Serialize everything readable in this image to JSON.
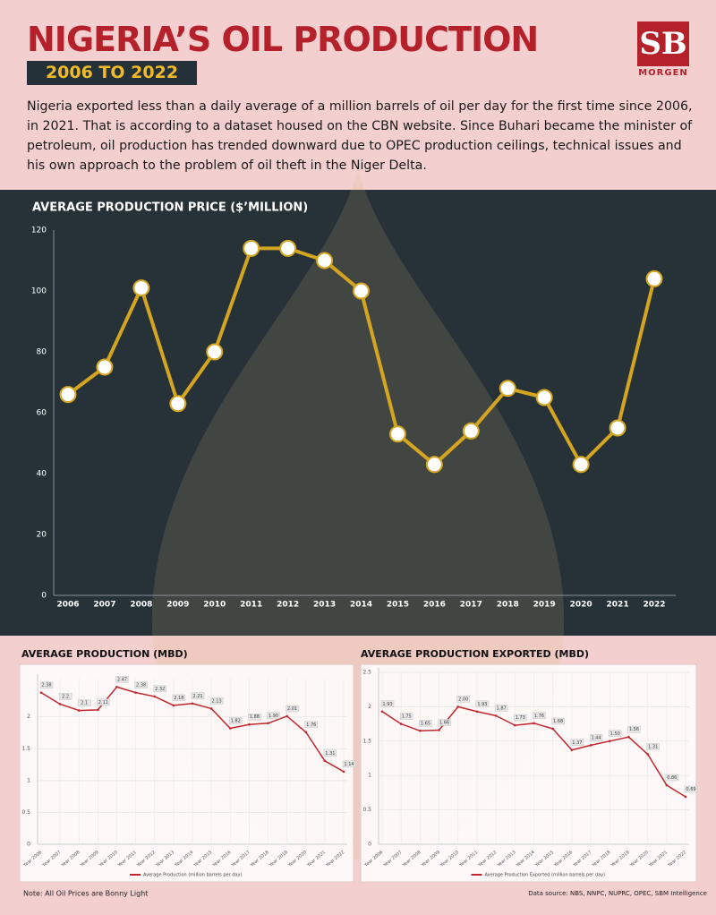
{
  "header": {
    "title": "NIGERIA’S OIL PRODUCTION",
    "subtitle": "2006 TO 2022",
    "description": "Nigeria exported less than a daily average of a million barrels of oil per day for the first time since 2006, in 2021. That is according to a dataset housed on the CBN website. Since Buhari became the minister of petroleum, oil production has trended downward due to OPEC production ceilings, technical issues and his own approach to the problem of oil theft in the Niger Delta.",
    "logo": "SB",
    "logo_caption": "MORGEN"
  },
  "footer": {
    "note": "Note: All Oil Prices are Bonny Light",
    "source": "Data source: NBS, NNPC, NUPRC, OPEC, SBM Intelligence"
  },
  "chart_data": [
    {
      "type": "line",
      "title": "AVERAGE PRODUCTION PRICE ($’MILLION)",
      "categories": [
        "2006",
        "2007",
        "2008",
        "2009",
        "2010",
        "2011",
        "2012",
        "2013",
        "2014",
        "2015",
        "2016",
        "2017",
        "2018",
        "2019",
        "2020",
        "2021",
        "2022"
      ],
      "series": [
        {
          "color": "#d4a520",
          "values": [
            66,
            75,
            101,
            63,
            80,
            114,
            114,
            110,
            100,
            53,
            43,
            54,
            68,
            65,
            43,
            55,
            104
          ]
        }
      ],
      "ylim": [
        0,
        120
      ],
      "yticks": [
        0,
        20,
        40,
        60,
        80,
        100,
        120
      ],
      "grid": false
    },
    {
      "type": "line",
      "title": "AVERAGE PRODUCTION (MBD)",
      "categories": [
        "Year 2006",
        "Year 2007",
        "Year 2008",
        "Year 2009",
        "Year 2010",
        "Year 2011",
        "Year 2012",
        "Year 2013",
        "Year 2014",
        "Year 2015",
        "Year 2016",
        "Year 2017",
        "Year 2018",
        "Year 2019",
        "Year 2020",
        "Year 2021",
        "Year 2022"
      ],
      "series": [
        {
          "name": "Average Production (million barrels per day)",
          "color": "#c0272d",
          "values": [
            2.38,
            2.2,
            2.1,
            2.11,
            2.47,
            2.38,
            2.32,
            2.18,
            2.21,
            2.13,
            1.82,
            1.88,
            1.9,
            2.01,
            1.76,
            1.31,
            1.14
          ],
          "value_labels": [
            "2.38",
            "2.2",
            "2.1",
            "2.11",
            "2.47",
            "2.38",
            "2.32",
            "2.18",
            "2.21",
            "2.13",
            "1.82",
            "1.88",
            "1.90",
            "2.01",
            "1.76",
            "1.31",
            "1.14"
          ]
        }
      ],
      "ylim": [
        0,
        2.6
      ],
      "yticks": [
        0,
        0.5,
        1,
        1.5,
        2
      ],
      "grid": true
    },
    {
      "type": "line",
      "title": "AVERAGE PRODUCTION EXPORTED (MBD)",
      "categories": [
        "Year 2006",
        "Year 2007",
        "Year 2008",
        "Year 2009",
        "Year 2010",
        "Year 2011",
        "Year 2012",
        "Year 2013",
        "Year 2014",
        "Year 2015",
        "Year 2016",
        "Year 2017",
        "Year 2018",
        "Year 2019",
        "Year 2020",
        "Year 2021",
        "Year 2022"
      ],
      "series": [
        {
          "name": "Average Production Exported (million barrels per day)",
          "color": "#c0272d",
          "values": [
            1.93,
            1.75,
            1.65,
            1.66,
            2.0,
            1.93,
            1.87,
            1.73,
            1.76,
            1.68,
            1.37,
            1.44,
            1.5,
            1.56,
            1.31,
            0.86,
            0.69
          ],
          "value_labels": [
            "1.93",
            "1.75",
            "1.65",
            "1.66",
            "2.00",
            "1.93",
            "1.87",
            "1.73",
            "1.76",
            "1.68",
            "1.37",
            "1.44",
            "1.50",
            "1.56",
            "1.31",
            "0.86",
            "0.69"
          ]
        }
      ],
      "ylim": [
        0,
        2.5
      ],
      "yticks": [
        0,
        0.5,
        1,
        1.5,
        2,
        2.5
      ],
      "grid": true
    }
  ]
}
